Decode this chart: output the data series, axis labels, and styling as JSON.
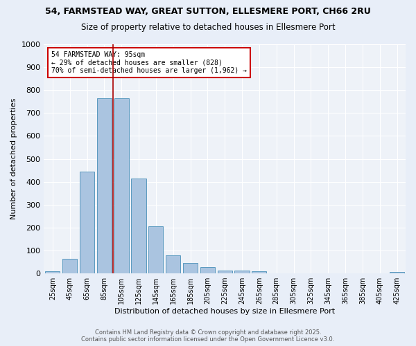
{
  "title_line1": "54, FARMSTEAD WAY, GREAT SUTTON, ELLESMERE PORT, CH66 2RU",
  "title_line2": "Size of property relative to detached houses in Ellesmere Port",
  "xlabel": "Distribution of detached houses by size in Ellesmere Port",
  "ylabel": "Number of detached properties",
  "categories": [
    "25sqm",
    "45sqm",
    "65sqm",
    "85sqm",
    "105sqm",
    "125sqm",
    "145sqm",
    "165sqm",
    "185sqm",
    "205sqm",
    "225sqm",
    "245sqm",
    "265sqm",
    "285sqm",
    "305sqm",
    "325sqm",
    "345sqm",
    "365sqm",
    "385sqm",
    "405sqm",
    "425sqm"
  ],
  "values": [
    10,
    63,
    445,
    765,
    765,
    415,
    205,
    80,
    45,
    27,
    13,
    13,
    10,
    0,
    0,
    0,
    0,
    0,
    0,
    0,
    7
  ],
  "bar_color": "#aac4e0",
  "bar_edge_color": "#5a9abf",
  "vline_color": "#aa0000",
  "annotation_line1": "54 FARMSTEAD WAY: 95sqm",
  "annotation_line2": "← 29% of detached houses are smaller (828)",
  "annotation_line3": "70% of semi-detached houses are larger (1,962) →",
  "annotation_box_color": "#ffffff",
  "annotation_box_edge": "#cc0000",
  "ylim": [
    0,
    1000
  ],
  "yticks": [
    0,
    100,
    200,
    300,
    400,
    500,
    600,
    700,
    800,
    900,
    1000
  ],
  "bg_color": "#e8eef8",
  "plot_bg_color": "#eef2f8",
  "grid_color": "#ffffff",
  "footer_line1": "Contains HM Land Registry data © Crown copyright and database right 2025.",
  "footer_line2": "Contains public sector information licensed under the Open Government Licence v3.0."
}
